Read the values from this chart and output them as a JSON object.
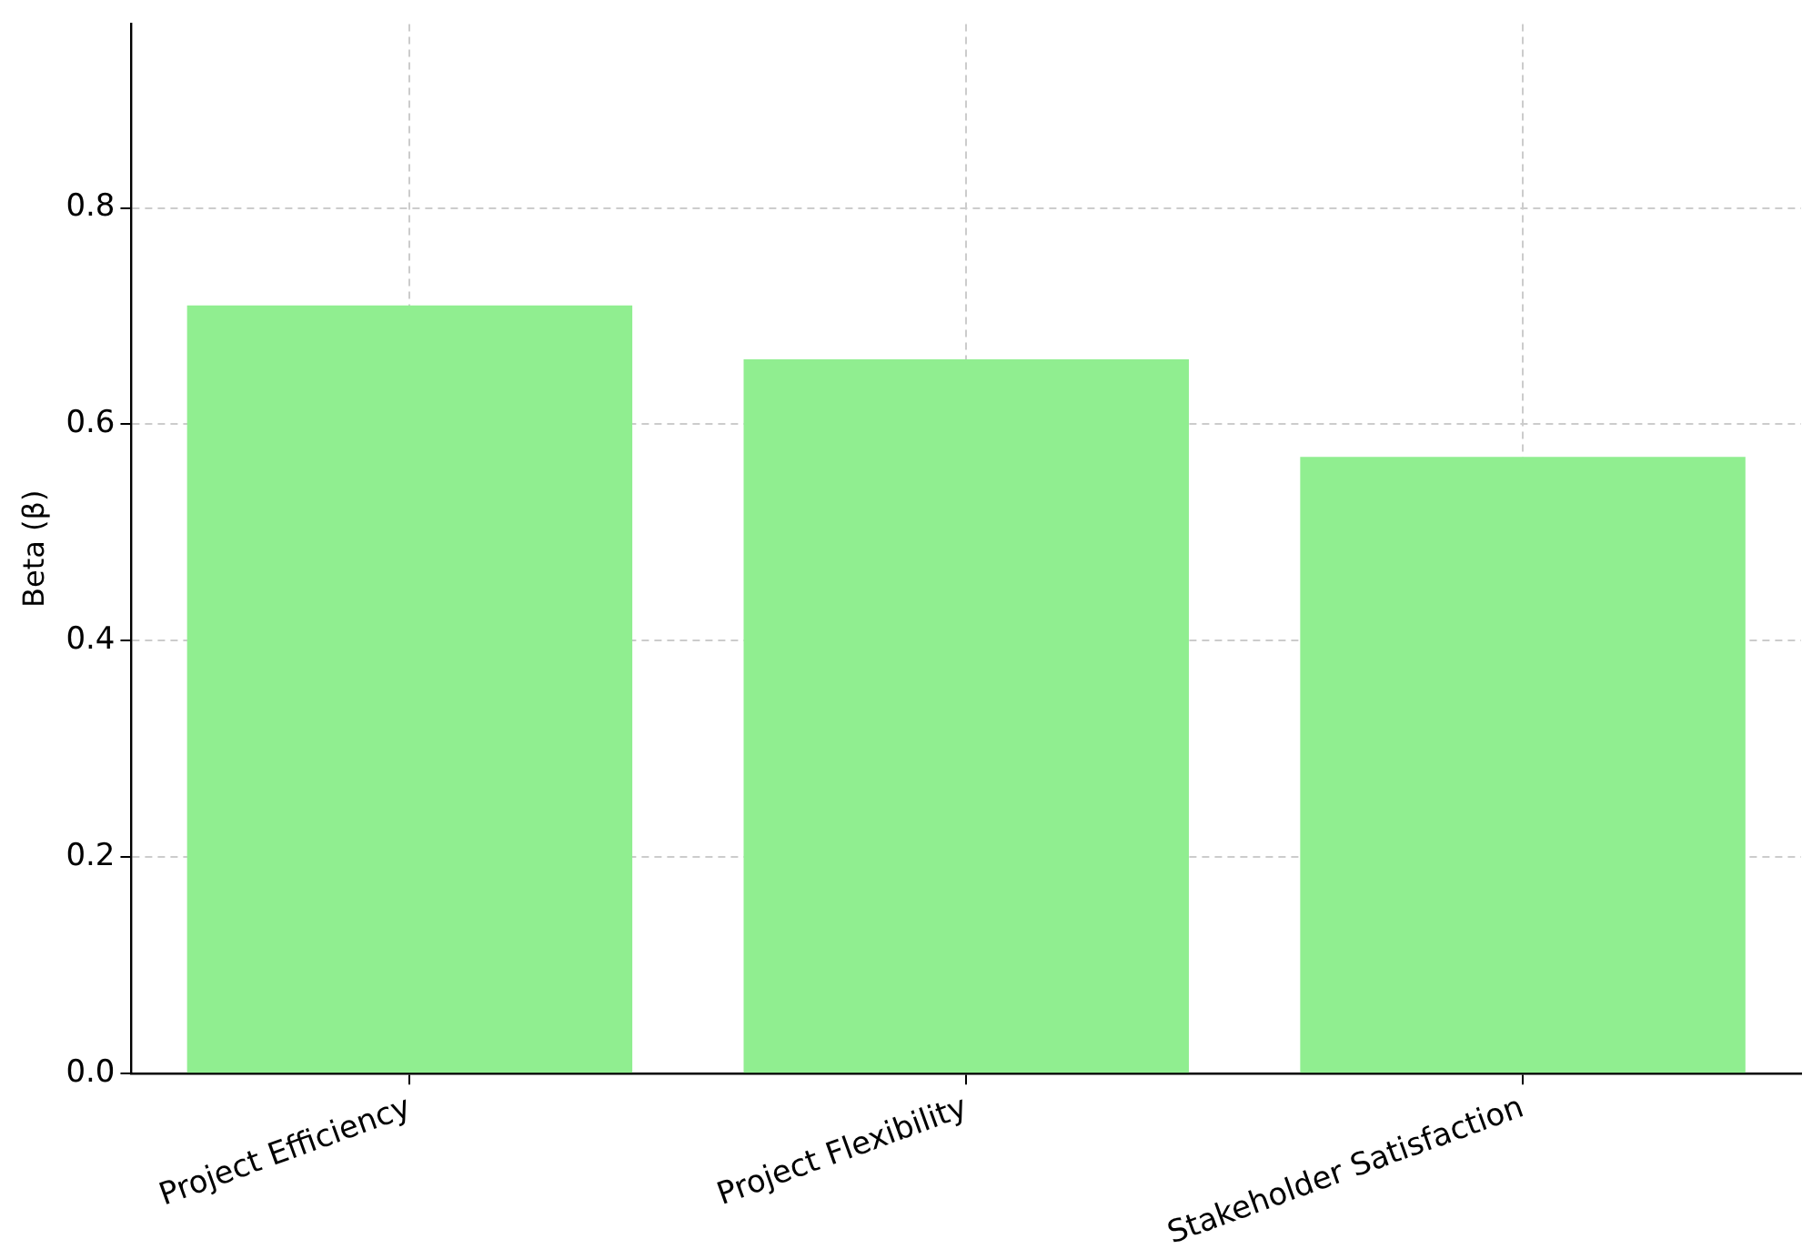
{
  "chart_data": {
    "type": "bar",
    "ylabel": "Beta (β)",
    "categories": [
      "Project Efficiency",
      "Project Flexibility",
      "Stakeholder Satisfaction"
    ],
    "values": [
      0.71,
      0.66,
      0.57
    ],
    "color": "#90ee90",
    "ylim": [
      0,
      0.97
    ],
    "yticks": [
      {
        "value": 0,
        "label": "0.0"
      },
      0.2,
      0.4,
      0.6,
      0.8
    ],
    "grid": true
  }
}
